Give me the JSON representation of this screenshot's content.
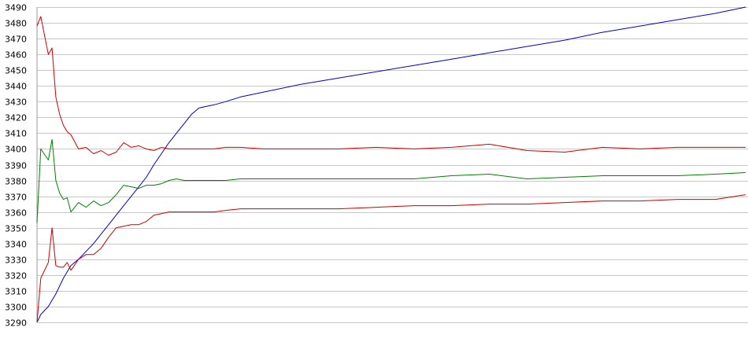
{
  "chart_data": {
    "type": "line",
    "title": "",
    "xlabel": "",
    "ylabel": "",
    "ylim": [
      3290,
      3490
    ],
    "yticks": [
      3290,
      3300,
      3310,
      3320,
      3330,
      3340,
      3350,
      3360,
      3370,
      3380,
      3390,
      3400,
      3410,
      3420,
      3430,
      3440,
      3450,
      3460,
      3470,
      3480,
      3490
    ],
    "grid": true,
    "legend": "none",
    "x": [
      0,
      1,
      3,
      4,
      5,
      6,
      7,
      8,
      9,
      11,
      13,
      15,
      17,
      19,
      21,
      23,
      25,
      27,
      29,
      31,
      33,
      35,
      37,
      39,
      41,
      43,
      45,
      47,
      50,
      54,
      60,
      70,
      80,
      90,
      100,
      110,
      120,
      130,
      140,
      150,
      160,
      170,
      180,
      188
    ],
    "series": [
      {
        "color": "#0000cc",
        "values": [
          3290,
          3295,
          3300,
          3304,
          3308,
          3313,
          3318,
          3322,
          3326,
          3330,
          3335,
          3340,
          3346,
          3352,
          3358,
          3364,
          3370,
          3376,
          3382,
          3390,
          3397,
          3404,
          3410,
          3416,
          3422,
          3426,
          3427,
          3428,
          3430,
          3433,
          3436,
          3441,
          3445,
          3449,
          3453,
          3457,
          3461,
          3465,
          3469,
          3474,
          3478,
          3482,
          3486,
          3490
        ]
      },
      {
        "color": "#cc0000",
        "values": [
          3478,
          3484,
          3460,
          3464,
          3433,
          3422,
          3415,
          3411,
          3409,
          3400,
          3401,
          3397,
          3399,
          3396,
          3398,
          3404,
          3401,
          3402,
          3400,
          3399,
          3401,
          3400,
          3400,
          3400,
          3400,
          3400,
          3400,
          3400,
          3401,
          3401,
          3400,
          3400,
          3400,
          3401,
          3400,
          3401,
          3403,
          3399,
          3398,
          3401,
          3400,
          3401,
          3401,
          3401
        ]
      },
      {
        "color": "#008000",
        "values": [
          3353,
          3400,
          3393,
          3406,
          3380,
          3372,
          3368,
          3369,
          3360,
          3366,
          3363,
          3367,
          3364,
          3366,
          3371,
          3377,
          3376,
          3375,
          3377,
          3377,
          3378,
          3380,
          3381,
          3380,
          3380,
          3380,
          3380,
          3380,
          3380,
          3381,
          3381,
          3381,
          3381,
          3381,
          3381,
          3383,
          3384,
          3381,
          3382,
          3383,
          3383,
          3383,
          3384,
          3385
        ]
      },
      {
        "color": "#cc0000",
        "values": [
          3290,
          3318,
          3328,
          3350,
          3326,
          3325,
          3325,
          3328,
          3323,
          3330,
          3333,
          3333,
          3337,
          3344,
          3350,
          3351,
          3352,
          3352,
          3354,
          3358,
          3359,
          3360,
          3360,
          3360,
          3360,
          3360,
          3360,
          3360,
          3361,
          3362,
          3362,
          3362,
          3362,
          3363,
          3364,
          3364,
          3365,
          3365,
          3366,
          3367,
          3367,
          3368,
          3368,
          3371
        ]
      }
    ]
  }
}
